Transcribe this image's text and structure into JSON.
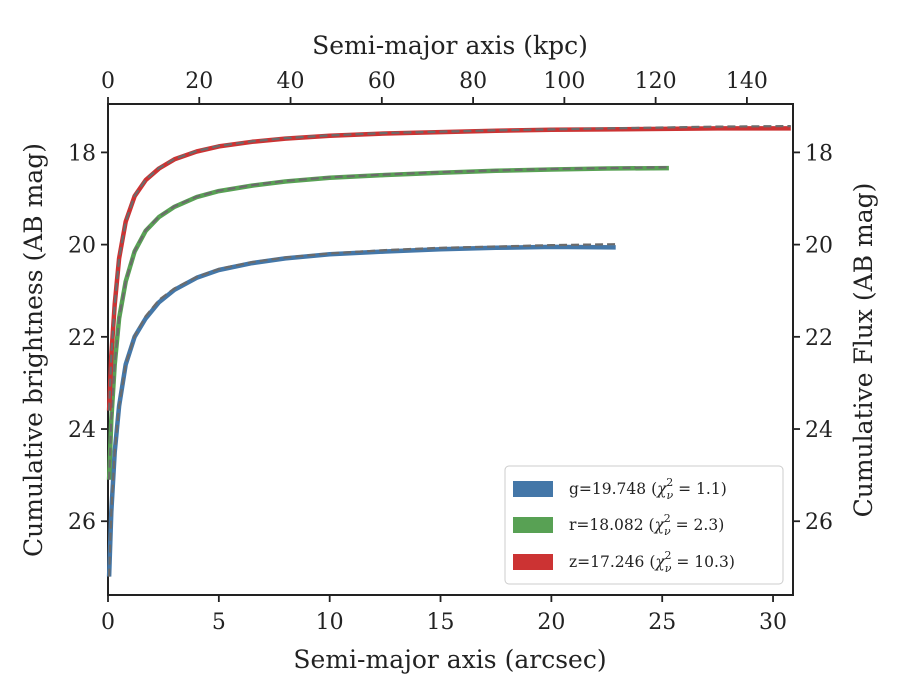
{
  "chart_data": {
    "type": "line",
    "xlabel": "Semi-major axis (arcsec)",
    "ylabel": "Cumulative brightness (AB mag)",
    "top_xlabel": "Semi-major axis (kpc)",
    "right_ylabel": "Cumulative Flux (AB mag)",
    "xlim": [
      0,
      30.9
    ],
    "ylim": [
      27.6,
      16.95
    ],
    "top_xlim": [
      0,
      150.1
    ],
    "x_ticks": [
      "0",
      "5",
      "10",
      "15",
      "20",
      "25",
      "30"
    ],
    "x_tick_values": [
      0,
      5,
      10,
      15,
      20,
      25,
      30
    ],
    "top_x_ticks": [
      "0",
      "20",
      "40",
      "60",
      "80",
      "100",
      "120",
      "140"
    ],
    "top_x_tick_values": [
      0,
      20,
      40,
      60,
      80,
      100,
      120,
      140
    ],
    "y_ticks": [
      "18",
      "20",
      "22",
      "24",
      "26"
    ],
    "y_tick_values": [
      18,
      20,
      22,
      24,
      26
    ],
    "y_inverted": true,
    "grid": false,
    "legend_position": "lower-right",
    "series": [
      {
        "band": "g",
        "legend": "g=19.748 (",
        "chi": "2",
        "chi_value": " = 1.1)",
        "color": "#4477a8",
        "x": [
          0.05,
          0.15,
          0.3,
          0.5,
          0.8,
          1.2,
          1.7,
          2.3,
          3,
          4,
          5,
          6.5,
          8,
          10,
          12.5,
          15,
          17.5,
          20,
          22.9
        ],
        "y": [
          27.2,
          25.8,
          24.5,
          23.5,
          22.6,
          22.0,
          21.6,
          21.25,
          20.98,
          20.72,
          20.55,
          20.4,
          20.3,
          20.21,
          20.15,
          20.1,
          20.07,
          20.05,
          20.06
        ],
        "model_x": [
          0.05,
          0.15,
          0.3,
          0.5,
          0.8,
          1.2,
          1.7,
          2.3,
          3,
          4,
          5,
          6.5,
          8,
          10,
          12.5,
          15,
          17.5,
          20,
          22.9
        ],
        "model_y": [
          27.2,
          25.8,
          24.5,
          23.5,
          22.6,
          21.98,
          21.55,
          21.2,
          20.95,
          20.7,
          20.53,
          20.38,
          20.28,
          20.19,
          20.12,
          20.07,
          20.04,
          20.01,
          19.99
        ]
      },
      {
        "band": "r",
        "legend": "r=18.082 (",
        "chi": "2",
        "chi_value": " = 2.3)",
        "color": "#58a154",
        "x": [
          0.05,
          0.15,
          0.3,
          0.5,
          0.8,
          1.2,
          1.7,
          2.3,
          3,
          4,
          5,
          6.5,
          8,
          10,
          12.5,
          15,
          17.5,
          20,
          22.5,
          25.3
        ],
        "y": [
          25.1,
          23.8,
          22.6,
          21.6,
          20.8,
          20.15,
          19.7,
          19.4,
          19.18,
          18.97,
          18.84,
          18.72,
          18.63,
          18.55,
          18.49,
          18.44,
          18.4,
          18.37,
          18.35,
          18.34
        ],
        "model_x": [
          0.05,
          0.15,
          0.3,
          0.5,
          0.8,
          1.2,
          1.7,
          2.3,
          3,
          4,
          5,
          6.5,
          8,
          10,
          12.5,
          15,
          17.5,
          20,
          22.5,
          25.3
        ],
        "model_y": [
          25.1,
          23.8,
          22.6,
          21.6,
          20.8,
          20.14,
          19.69,
          19.39,
          19.17,
          18.96,
          18.83,
          18.71,
          18.62,
          18.54,
          18.48,
          18.43,
          18.39,
          18.36,
          18.34,
          18.32
        ]
      },
      {
        "band": "z",
        "legend": "z=17.246 (",
        "chi": "2",
        "chi_value": " = 10.3)",
        "color": "#cc3333",
        "x": [
          0.05,
          0.15,
          0.3,
          0.5,
          0.8,
          1.2,
          1.7,
          2.3,
          3,
          4,
          5,
          6.5,
          8,
          10,
          12.5,
          15,
          17.5,
          20,
          22.5,
          25,
          27.5,
          30.8
        ],
        "y": [
          23.6,
          22.4,
          21.3,
          20.3,
          19.5,
          18.95,
          18.6,
          18.35,
          18.15,
          17.98,
          17.87,
          17.77,
          17.7,
          17.64,
          17.59,
          17.56,
          17.53,
          17.51,
          17.5,
          17.49,
          17.48,
          17.48
        ],
        "model_x": [
          0.05,
          0.15,
          0.3,
          0.5,
          0.8,
          1.2,
          1.7,
          2.3,
          3,
          4,
          5,
          6.5,
          8,
          10,
          12.5,
          15,
          17.5,
          20,
          22.5,
          25,
          27.5,
          30.8
        ],
        "model_y": [
          23.6,
          22.4,
          21.3,
          20.3,
          19.5,
          18.94,
          18.59,
          18.34,
          18.14,
          17.97,
          17.86,
          17.76,
          17.69,
          17.63,
          17.58,
          17.55,
          17.52,
          17.5,
          17.48,
          17.46,
          17.44,
          17.43
        ]
      }
    ]
  },
  "colors": {
    "model_line": "#6b6b6b",
    "axes": "#222222"
  }
}
